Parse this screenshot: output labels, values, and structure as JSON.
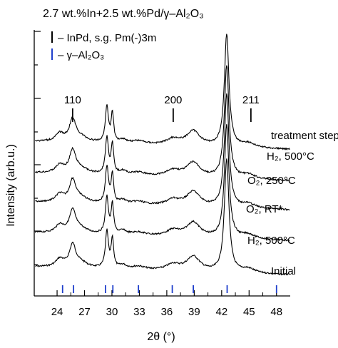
{
  "chart_data": {
    "type": "line",
    "title": "2.7 wt.%In+2.5 wt.%Pd/γ–Al₂O₃",
    "xlabel": "2θ (°)",
    "ylabel": "Intensity (arb.u.)",
    "xlim": [
      21.5,
      49.5
    ],
    "x_ticks": [
      24,
      27,
      30,
      33,
      36,
      39,
      42,
      45,
      48
    ],
    "x_tick_labels": [
      "24",
      "27",
      "30",
      "33",
      "36",
      "39",
      "42",
      "45",
      "48"
    ],
    "legend": [
      {
        "label": "– InPd, s.g. Pm(-)3m",
        "color": "#000000"
      },
      {
        "label": "– γ–Al₂O₃",
        "color": "#1f3fcc"
      }
    ],
    "reference_markers": {
      "InPd": [
        {
          "position": 25.7,
          "hkl": "110"
        },
        {
          "position": 36.7,
          "hkl": "200"
        },
        {
          "position": 45.2,
          "hkl": "211"
        }
      ],
      "gamma_Al2O3": [
        24.6,
        25.8,
        29.3,
        30.1,
        32.9,
        36.6,
        38.9,
        42.6,
        48.0
      ]
    },
    "annotation": "treatment steps ↑",
    "series": [
      {
        "name": "Initial",
        "offset": 0
      },
      {
        "name": "H₂, 500°C",
        "offset": 1
      },
      {
        "name": "O₂, RT*",
        "offset": 2
      },
      {
        "name": "O₂, 250°C",
        "offset": 3
      },
      {
        "name": "H₂, 500°C",
        "offset": 4
      }
    ]
  }
}
